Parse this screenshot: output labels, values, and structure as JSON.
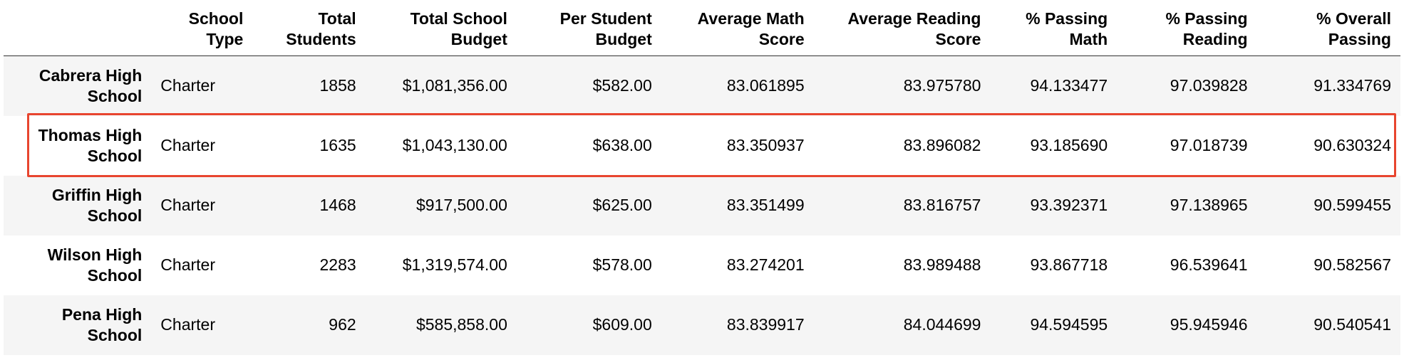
{
  "table": {
    "columns": [
      "",
      "School Type",
      "Total Students",
      "Total School Budget",
      "Per Student Budget",
      "Average Math Score",
      "Average Reading Score",
      "% Passing Math",
      "% Passing Reading",
      "% Overall Passing"
    ],
    "header_lines": [
      [
        "",
        ""
      ],
      [
        "School",
        "Type"
      ],
      [
        "Total",
        "Students"
      ],
      [
        "Total School",
        "Budget"
      ],
      [
        "Per Student",
        "Budget"
      ],
      [
        "Average Math",
        "Score"
      ],
      [
        "Average Reading",
        "Score"
      ],
      [
        "% Passing",
        "Math"
      ],
      [
        "% Passing",
        "Reading"
      ],
      [
        "% Overall",
        "Passing"
      ]
    ],
    "rows": [
      {
        "name_lines": [
          "Cabrera High",
          "School"
        ],
        "school_type": "Charter",
        "total_students": "1858",
        "total_budget": "$1,081,356.00",
        "per_student_budget": "$582.00",
        "avg_math": "83.061895",
        "avg_reading": "83.975780",
        "pct_math": "94.133477",
        "pct_reading": "97.039828",
        "pct_overall": "91.334769"
      },
      {
        "name_lines": [
          "Thomas High",
          "School"
        ],
        "school_type": "Charter",
        "total_students": "1635",
        "total_budget": "$1,043,130.00",
        "per_student_budget": "$638.00",
        "avg_math": "83.350937",
        "avg_reading": "83.896082",
        "pct_math": "93.185690",
        "pct_reading": "97.018739",
        "pct_overall": "90.630324"
      },
      {
        "name_lines": [
          "Griffin High",
          "School"
        ],
        "school_type": "Charter",
        "total_students": "1468",
        "total_budget": "$917,500.00",
        "per_student_budget": "$625.00",
        "avg_math": "83.351499",
        "avg_reading": "83.816757",
        "pct_math": "93.392371",
        "pct_reading": "97.138965",
        "pct_overall": "90.599455"
      },
      {
        "name_lines": [
          "Wilson High",
          "School"
        ],
        "school_type": "Charter",
        "total_students": "2283",
        "total_budget": "$1,319,574.00",
        "per_student_budget": "$578.00",
        "avg_math": "83.274201",
        "avg_reading": "83.989488",
        "pct_math": "93.867718",
        "pct_reading": "96.539641",
        "pct_overall": "90.582567"
      },
      {
        "name_lines": [
          "Pena High",
          "School"
        ],
        "school_type": "Charter",
        "total_students": "962",
        "total_budget": "$585,858.00",
        "per_student_budget": "$609.00",
        "avg_math": "83.839917",
        "avg_reading": "84.044699",
        "pct_math": "94.594595",
        "pct_reading": "95.945946",
        "pct_overall": "90.540541"
      }
    ],
    "highlighted_row_index": 1
  },
  "colors": {
    "stripe": "#f5f5f5",
    "highlight_border": "#e8452f",
    "header_rule": "#333333"
  }
}
